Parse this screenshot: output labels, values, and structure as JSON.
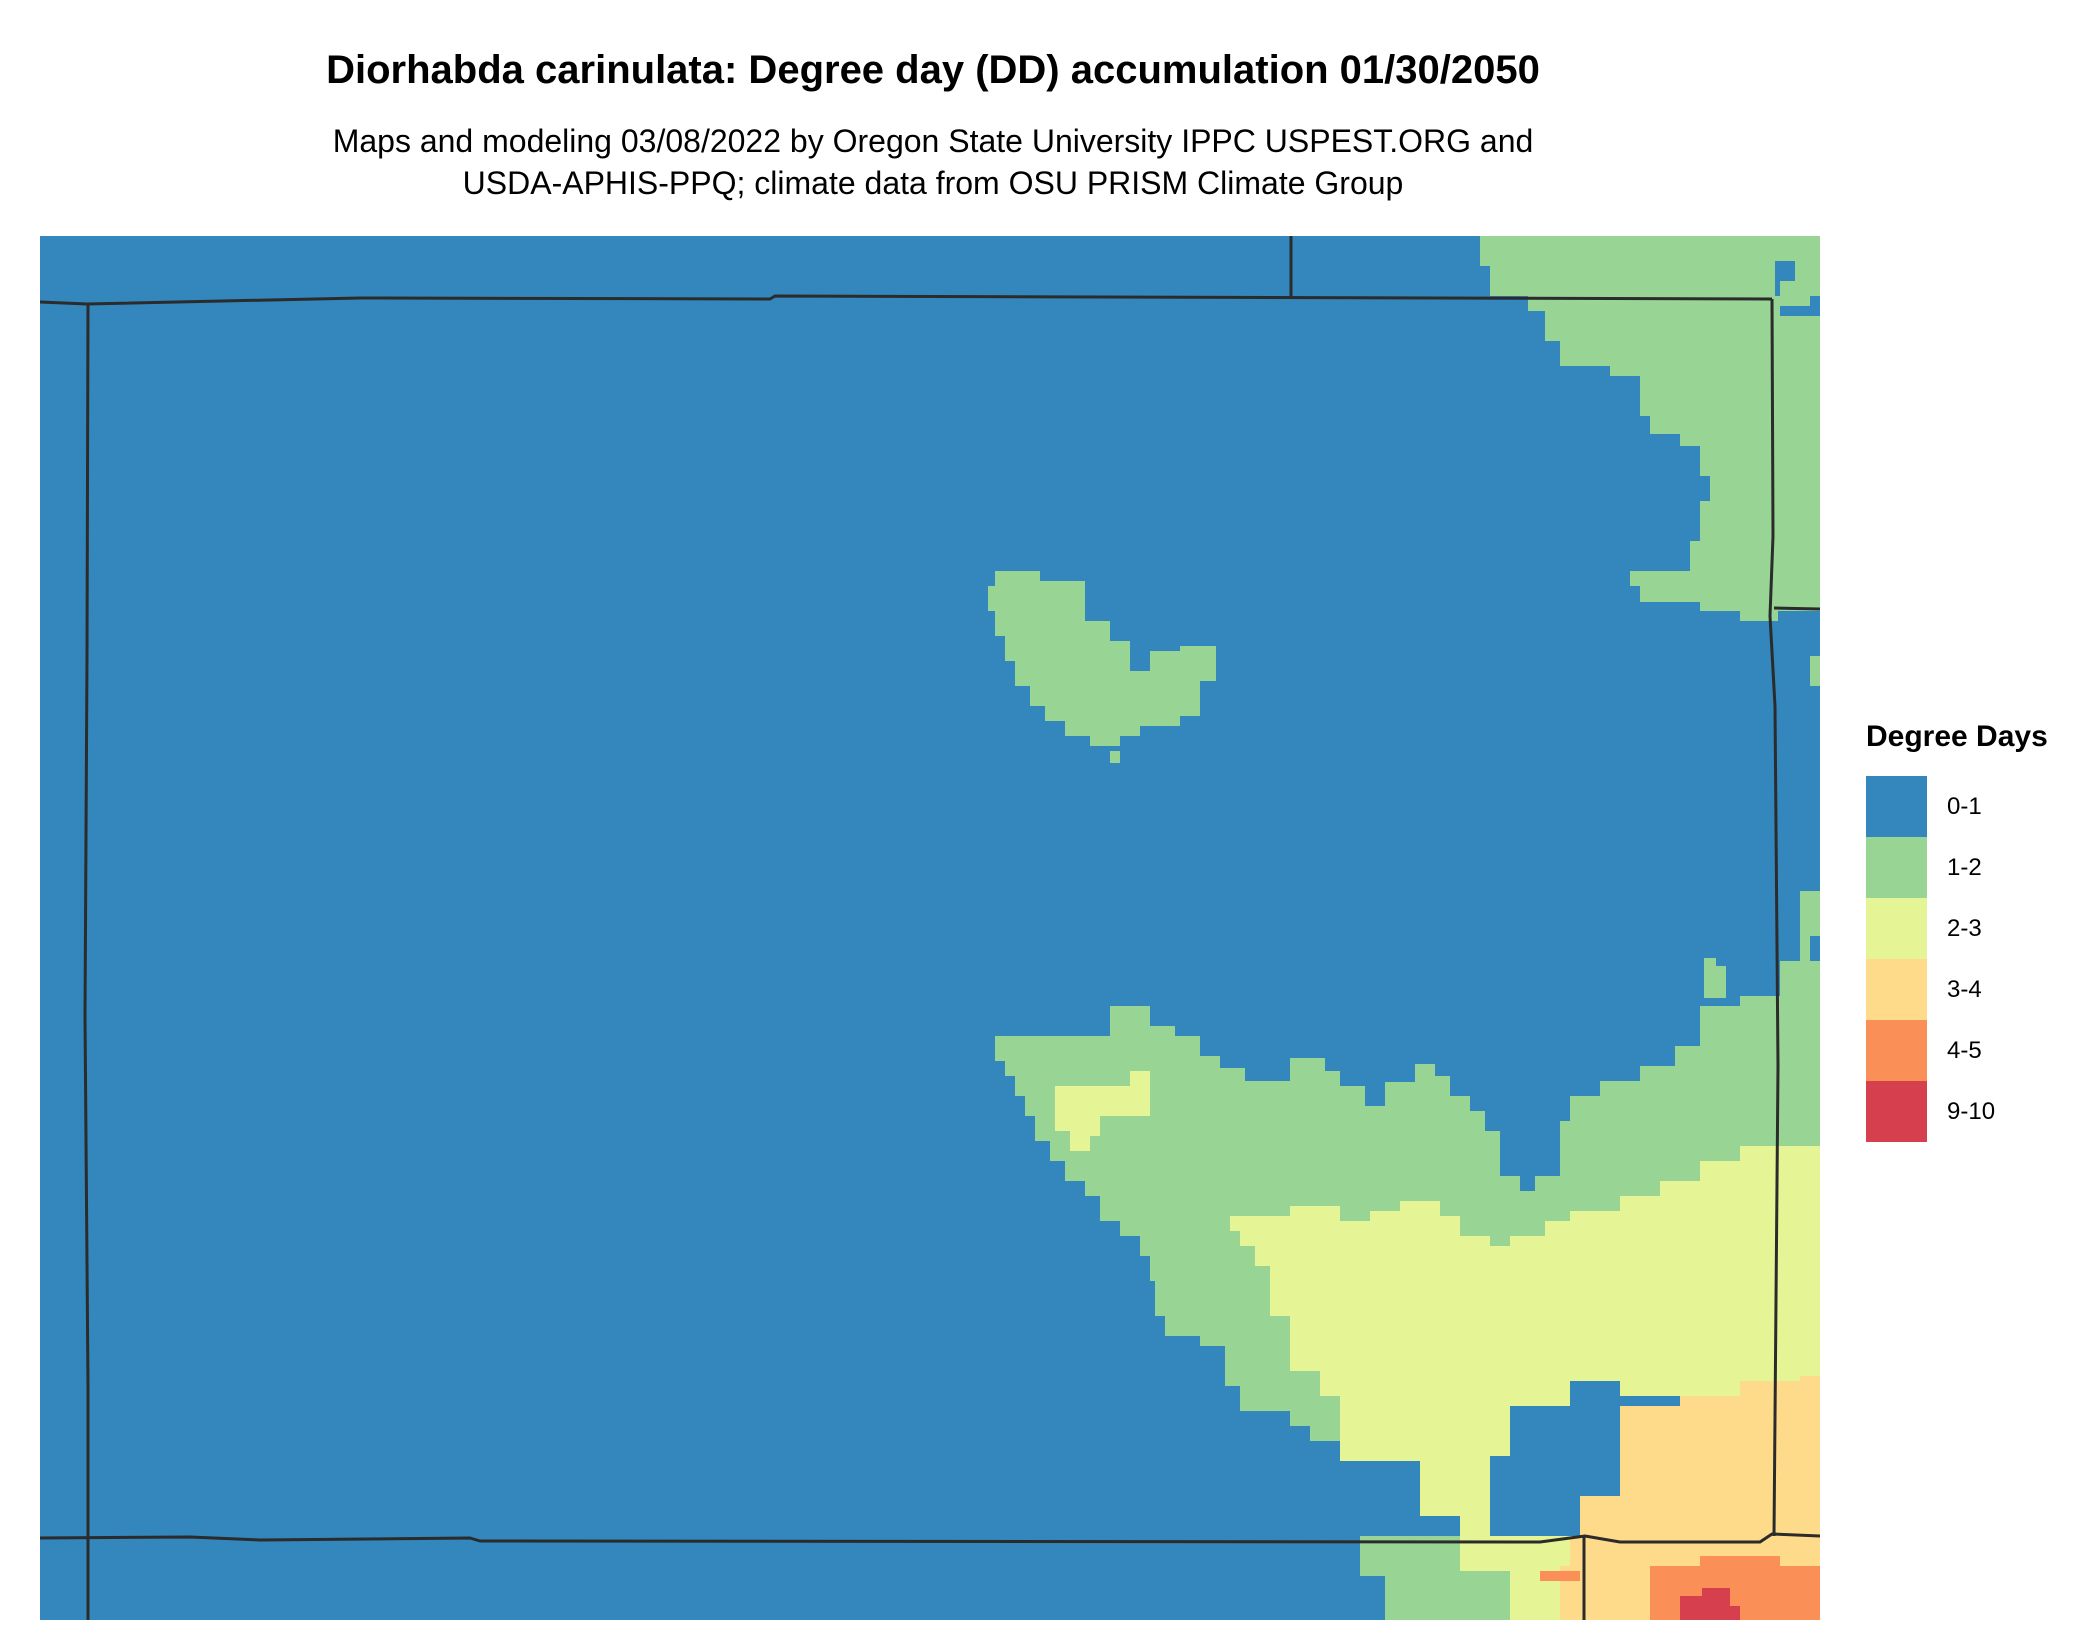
{
  "title": "Diorhabda carinulata: Degree day (DD) accumulation 01/30/2050",
  "subtitle_lines": [
    "Maps and modeling 03/08/2022 by Oregon State University IPPC USPEST.ORG and",
    "USDA-APHIS-PPQ; climate data from OSU PRISM Climate Group"
  ],
  "legend": {
    "title": "Degree Days",
    "items": [
      {
        "label": "0-1",
        "color": "#3387bc"
      },
      {
        "label": "1-2",
        "color": "#98d594"
      },
      {
        "label": "2-3",
        "color": "#e5f494"
      },
      {
        "label": "3-4",
        "color": "#fedb8a"
      },
      {
        "label": "4-5",
        "color": "#fa9058"
      },
      {
        "label": "9-10",
        "color": "#d6404e"
      }
    ]
  },
  "map": {
    "background_class": "0-1",
    "border_color": "#2b2b2b"
  }
}
